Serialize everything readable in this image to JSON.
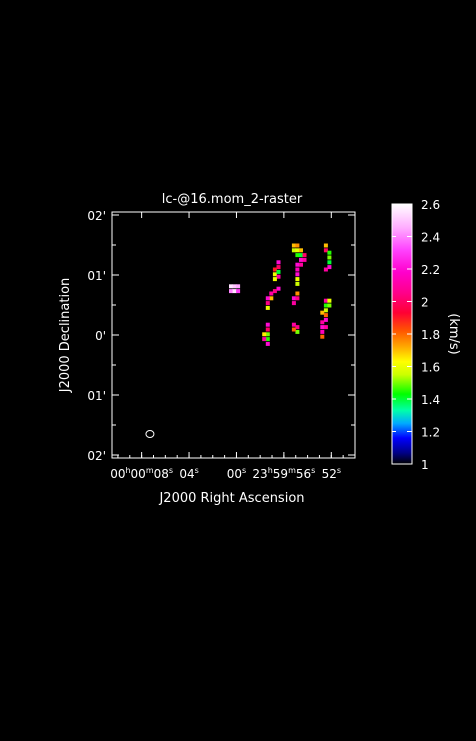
{
  "chart_data": {
    "type": "heatmap",
    "title": "lc-@16.mom_2-raster",
    "xlabel": "J2000 Right Ascension",
    "ylabel": "J2000 Declination",
    "x_ticks": [
      {
        "h": "00",
        "m": "00",
        "s": "08"
      },
      {
        "s": "04"
      },
      {
        "s": "00"
      },
      {
        "h": "23",
        "m": "59",
        "s": "56"
      },
      {
        "s": "52"
      }
    ],
    "x_tick_values_sec": [
      8,
      4,
      0,
      -4,
      -8
    ],
    "x_range_sec": [
      10.5,
      -10
    ],
    "y_ticks": [
      "02'",
      "01'",
      "0'",
      "01'",
      "02'"
    ],
    "y_tick_values_arcmin": [
      2,
      1,
      0,
      -1,
      -2
    ],
    "y_range_arcmin": [
      -2.05,
      2.05
    ],
    "colorbar": {
      "label": "(km/s)",
      "min": 1.0,
      "max": 2.6,
      "ticks": [
        "2.6",
        "2.4",
        "2.2",
        "2",
        "1.8",
        "1.6",
        "1.4",
        "1.2",
        "1"
      ],
      "tick_values": [
        2.6,
        2.4,
        2.2,
        2.0,
        1.8,
        1.6,
        1.4,
        1.2,
        1.0
      ],
      "colormap_stops": [
        {
          "v": 1.0,
          "c": "#000000"
        },
        {
          "v": 1.07,
          "c": "#000088"
        },
        {
          "v": 1.16,
          "c": "#0000ff"
        },
        {
          "v": 1.25,
          "c": "#00aaff"
        },
        {
          "v": 1.33,
          "c": "#00ffaa"
        },
        {
          "v": 1.43,
          "c": "#00ff00"
        },
        {
          "v": 1.55,
          "c": "#ccff00"
        },
        {
          "v": 1.63,
          "c": "#ffff00"
        },
        {
          "v": 1.72,
          "c": "#ffaa00"
        },
        {
          "v": 1.82,
          "c": "#ff5500"
        },
        {
          "v": 1.93,
          "c": "#ff0033"
        },
        {
          "v": 2.05,
          "c": "#ff0088"
        },
        {
          "v": 2.18,
          "c": "#ff00cc"
        },
        {
          "v": 2.32,
          "c": "#ff44ff"
        },
        {
          "v": 2.45,
          "c": "#ffaaff"
        },
        {
          "v": 2.6,
          "c": "#ffffff"
        }
      ]
    },
    "beam": {
      "ra_sec": 7.3,
      "dec_arcmin": -1.65,
      "shape": "ellipse"
    },
    "pixels": [
      {
        "ra": 0.5,
        "dec": 0.82,
        "v": 2.55
      },
      {
        "ra": 0.2,
        "dec": 0.82,
        "v": 2.5
      },
      {
        "ra": -0.1,
        "dec": 0.82,
        "v": 2.45
      },
      {
        "ra": 0.5,
        "dec": 0.74,
        "v": 2.4
      },
      {
        "ra": 0.2,
        "dec": 0.74,
        "v": 2.55
      },
      {
        "ra": -0.1,
        "dec": 0.74,
        "v": 2.3
      },
      {
        "ra": -3.5,
        "dec": 1.22,
        "v": 2.2
      },
      {
        "ra": -3.5,
        "dec": 1.14,
        "v": 2.0
      },
      {
        "ra": -3.2,
        "dec": 1.1,
        "v": 1.9
      },
      {
        "ra": -3.2,
        "dec": 1.02,
        "v": 1.6
      },
      {
        "ra": -3.5,
        "dec": 1.06,
        "v": 1.4
      },
      {
        "ra": -3.5,
        "dec": 0.98,
        "v": 2.1
      },
      {
        "ra": -3.2,
        "dec": 0.94,
        "v": 1.6
      },
      {
        "ra": -3.5,
        "dec": 0.78,
        "v": 2.2
      },
      {
        "ra": -3.2,
        "dec": 0.74,
        "v": 2.05
      },
      {
        "ra": -2.9,
        "dec": 0.7,
        "v": 2.1
      },
      {
        "ra": -2.9,
        "dec": 0.62,
        "v": 1.7
      },
      {
        "ra": -2.6,
        "dec": 0.62,
        "v": 2.2
      },
      {
        "ra": -2.6,
        "dec": 0.54,
        "v": 2.05
      },
      {
        "ra": -2.6,
        "dec": 0.46,
        "v": 1.6
      },
      {
        "ra": -2.6,
        "dec": 0.18,
        "v": 2.2
      },
      {
        "ra": -2.6,
        "dec": 0.1,
        "v": 2.0
      },
      {
        "ra": -2.6,
        "dec": 0.02,
        "v": 1.5
      },
      {
        "ra": -2.3,
        "dec": 0.02,
        "v": 1.65
      },
      {
        "ra": -2.6,
        "dec": -0.06,
        "v": 1.45
      },
      {
        "ra": -2.3,
        "dec": -0.06,
        "v": 2.1
      },
      {
        "ra": -2.6,
        "dec": -0.14,
        "v": 2.2
      },
      {
        "ra": -4.8,
        "dec": 1.5,
        "v": 1.7
      },
      {
        "ra": -5.1,
        "dec": 1.5,
        "v": 1.75
      },
      {
        "ra": -4.8,
        "dec": 1.42,
        "v": 1.55
      },
      {
        "ra": -5.1,
        "dec": 1.42,
        "v": 1.6
      },
      {
        "ra": -5.4,
        "dec": 1.42,
        "v": 1.7
      },
      {
        "ra": -5.1,
        "dec": 1.34,
        "v": 1.45
      },
      {
        "ra": -5.4,
        "dec": 1.34,
        "v": 1.4
      },
      {
        "ra": -5.7,
        "dec": 1.34,
        "v": 2.0
      },
      {
        "ra": -5.4,
        "dec": 1.26,
        "v": 2.2
      },
      {
        "ra": -5.7,
        "dec": 1.26,
        "v": 2.1
      },
      {
        "ra": -5.1,
        "dec": 1.18,
        "v": 2.2
      },
      {
        "ra": -5.4,
        "dec": 1.18,
        "v": 2.1
      },
      {
        "ra": -5.1,
        "dec": 1.1,
        "v": 2.15
      },
      {
        "ra": -5.1,
        "dec": 1.02,
        "v": 2.2
      },
      {
        "ra": -5.1,
        "dec": 0.94,
        "v": 1.6
      },
      {
        "ra": -5.1,
        "dec": 0.86,
        "v": 1.55
      },
      {
        "ra": -5.1,
        "dec": 0.7,
        "v": 1.75
      },
      {
        "ra": -4.8,
        "dec": 0.62,
        "v": 2.2
      },
      {
        "ra": -5.1,
        "dec": 0.62,
        "v": 2.05
      },
      {
        "ra": -4.8,
        "dec": 0.54,
        "v": 2.1
      },
      {
        "ra": -4.8,
        "dec": 0.18,
        "v": 2.1
      },
      {
        "ra": -5.1,
        "dec": 0.14,
        "v": 2.05
      },
      {
        "ra": -5.1,
        "dec": 0.06,
        "v": 1.5
      },
      {
        "ra": -4.8,
        "dec": 0.1,
        "v": 1.8
      },
      {
        "ra": -7.5,
        "dec": 1.5,
        "v": 1.7
      },
      {
        "ra": -7.5,
        "dec": 1.42,
        "v": 2.0
      },
      {
        "ra": -7.8,
        "dec": 1.38,
        "v": 1.45
      },
      {
        "ra": -7.8,
        "dec": 1.3,
        "v": 1.5
      },
      {
        "ra": -7.8,
        "dec": 1.22,
        "v": 1.4
      },
      {
        "ra": -7.8,
        "dec": 1.14,
        "v": 2.2
      },
      {
        "ra": -7.5,
        "dec": 1.1,
        "v": 2.1
      },
      {
        "ra": -7.5,
        "dec": 0.58,
        "v": 2.1
      },
      {
        "ra": -7.8,
        "dec": 0.58,
        "v": 1.6
      },
      {
        "ra": -7.5,
        "dec": 0.5,
        "v": 1.45
      },
      {
        "ra": -7.8,
        "dec": 0.5,
        "v": 1.5
      },
      {
        "ra": -7.5,
        "dec": 0.42,
        "v": 1.55
      },
      {
        "ra": -7.2,
        "dec": 0.38,
        "v": 1.7
      },
      {
        "ra": -7.5,
        "dec": 0.34,
        "v": 1.8
      },
      {
        "ra": -7.5,
        "dec": 0.26,
        "v": 2.2
      },
      {
        "ra": -7.2,
        "dec": 0.22,
        "v": 2.1
      },
      {
        "ra": -7.2,
        "dec": 0.14,
        "v": 2.2
      },
      {
        "ra": -7.5,
        "dec": 0.14,
        "v": 2.1
      },
      {
        "ra": -7.2,
        "dec": 0.06,
        "v": 2.15
      },
      {
        "ra": -7.2,
        "dec": -0.02,
        "v": 1.8
      }
    ]
  }
}
